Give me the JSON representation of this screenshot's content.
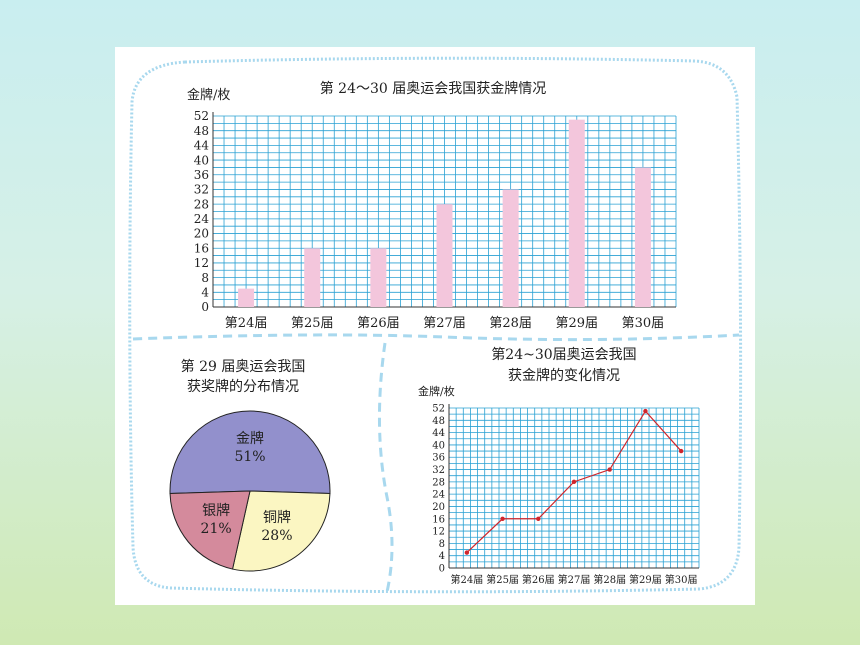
{
  "colors": {
    "grid": "#2aa1d3",
    "bar": "#f3c6dc",
    "line": "#d0252b",
    "border": "#a8d8ee",
    "pie_gold": "#9290cc",
    "pie_silver": "#d48a9c",
    "pie_bronze": "#fbf6c2"
  },
  "chart_data": [
    {
      "type": "bar",
      "title": "第 24～30 届奥运会我国获金牌情况",
      "ylabel": "金牌/枚",
      "xlabel": "",
      "categories": [
        "第24届",
        "第25届",
        "第26届",
        "第27届",
        "第28届",
        "第29届",
        "第30届"
      ],
      "values": [
        5,
        16,
        16,
        28,
        32,
        51,
        38
      ],
      "ylim": [
        0,
        52
      ],
      "yticks": [
        0,
        4,
        8,
        12,
        16,
        20,
        24,
        28,
        32,
        36,
        40,
        44,
        48,
        52
      ],
      "grid": true
    },
    {
      "type": "pie",
      "title_line1": "第 29 届奥运会我国",
      "title_line2": "获奖牌的分布情况",
      "slices": [
        {
          "label": "金牌",
          "value": 51,
          "pct": "51%"
        },
        {
          "label": "铜牌",
          "value": 28,
          "pct": "28%"
        },
        {
          "label": "银牌",
          "value": 21,
          "pct": "21%"
        }
      ]
    },
    {
      "type": "line",
      "title_line1": "第24~30届奥运会我国",
      "title_line2": "获金牌的变化情况",
      "ylabel": "金牌/枚",
      "xlabel": "",
      "categories": [
        "第24届",
        "第25届",
        "第26届",
        "第27届",
        "第28届",
        "第29届",
        "第30届"
      ],
      "values": [
        5,
        16,
        16,
        28,
        32,
        51,
        38
      ],
      "ylim": [
        0,
        52
      ],
      "yticks": [
        0,
        4,
        8,
        12,
        16,
        20,
        24,
        28,
        32,
        36,
        40,
        44,
        48,
        52
      ],
      "grid": true
    }
  ]
}
